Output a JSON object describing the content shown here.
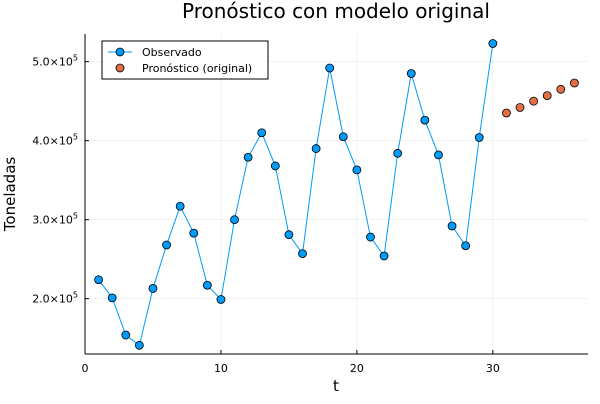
{
  "chart_data": {
    "type": "line",
    "title": "Pronóstico con modelo original",
    "xlabel": "t",
    "ylabel": "Toneladas",
    "xlim": [
      0,
      37
    ],
    "ylim": [
      130000,
      535000
    ],
    "x_ticks": [
      {
        "value": 0,
        "label": "0"
      },
      {
        "value": 10,
        "label": "10"
      },
      {
        "value": 20,
        "label": "20"
      },
      {
        "value": 30,
        "label": "30"
      }
    ],
    "y_ticks": [
      {
        "value": 200000,
        "base": "2.0×10",
        "exp": "5"
      },
      {
        "value": 300000,
        "base": "3.0×10",
        "exp": "5"
      },
      {
        "value": 400000,
        "base": "4.0×10",
        "exp": "5"
      },
      {
        "value": 500000,
        "base": "5.0×10",
        "exp": "5"
      }
    ],
    "grid": true,
    "legend_position": "top-left",
    "series": [
      {
        "name": "Observado",
        "color": "#009AFA",
        "line": true,
        "x": [
          1,
          2,
          3,
          4,
          5,
          6,
          7,
          8,
          9,
          10,
          11,
          12,
          13,
          14,
          15,
          16,
          17,
          18,
          19,
          20,
          21,
          22,
          23,
          24,
          25,
          26,
          27,
          28,
          29,
          30
        ],
        "y": [
          224000,
          201000,
          154000,
          141000,
          213000,
          268000,
          317000,
          283000,
          217000,
          199000,
          300000,
          379000,
          410000,
          368000,
          281000,
          257000,
          390000,
          492000,
          405000,
          363000,
          278000,
          254000,
          384000,
          485000,
          426000,
          382000,
          292000,
          267000,
          404000,
          523000
        ]
      },
      {
        "name": "Pronóstico (original)",
        "color": "#E26F46",
        "line": false,
        "x": [
          31,
          32,
          33,
          34,
          35,
          36
        ],
        "y": [
          435000,
          442000,
          450000,
          457000,
          465000,
          473000
        ]
      }
    ]
  }
}
